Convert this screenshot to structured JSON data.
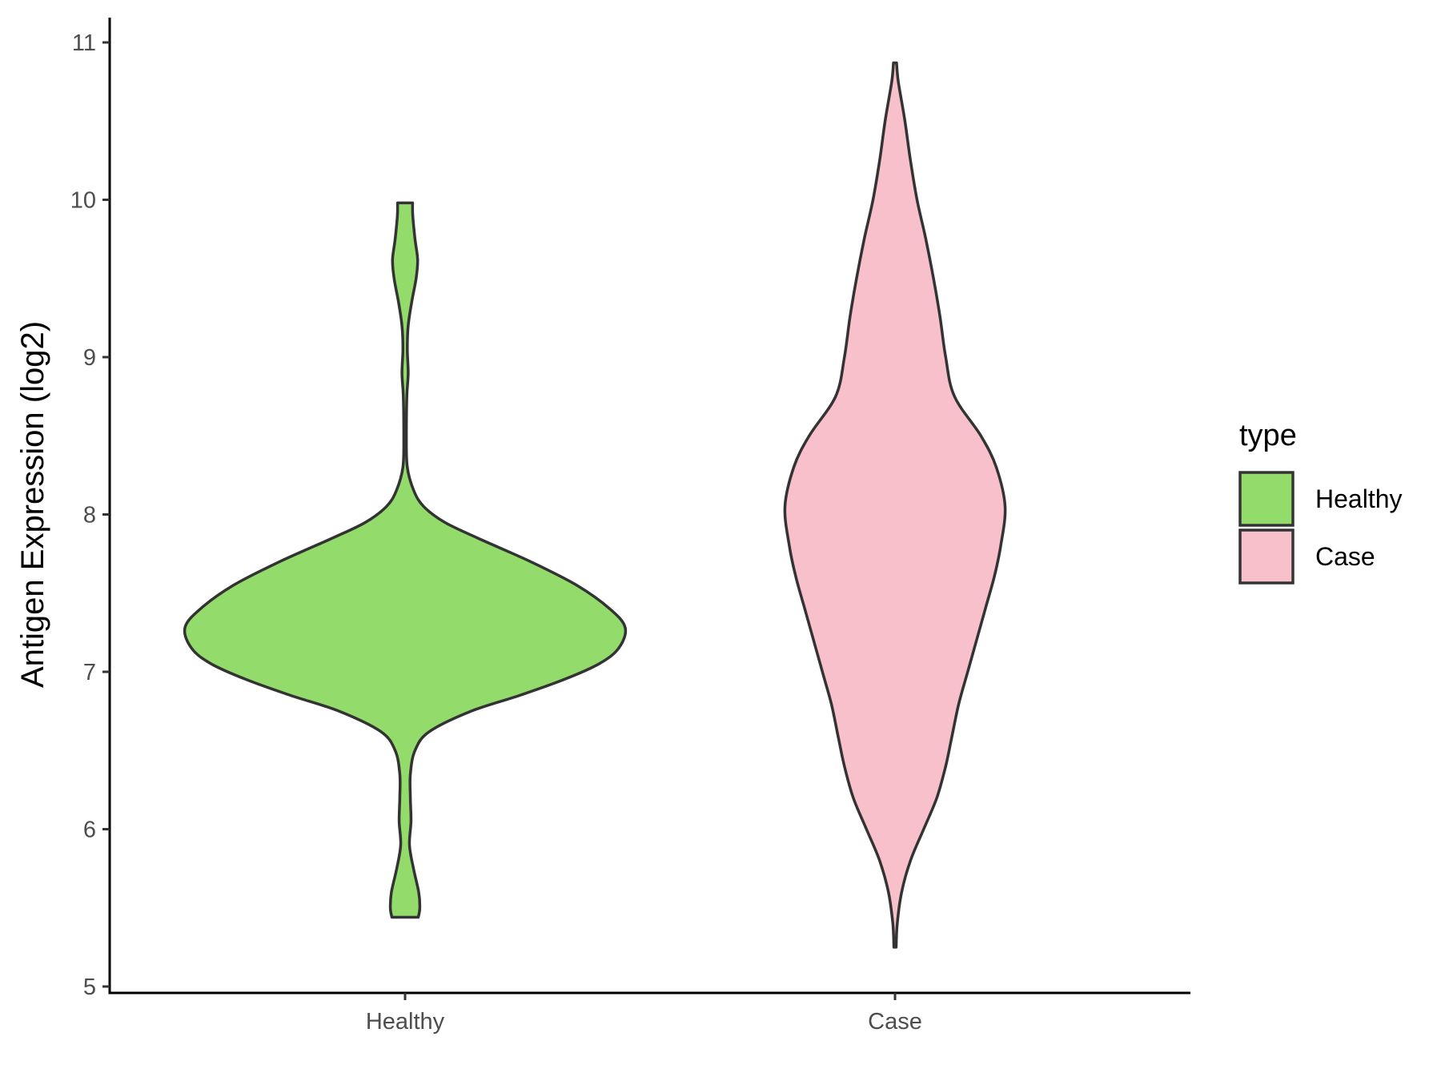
{
  "chart_data": {
    "type": "violin",
    "title": "",
    "xlabel": "",
    "ylabel": "Antigen Expression (log2)",
    "ylim": [
      4.95,
      11.15
    ],
    "yticks": [
      5,
      6,
      7,
      8,
      9,
      10,
      11
    ],
    "grid": false,
    "categories": [
      "Healthy",
      "Case"
    ],
    "legend": {
      "title": "type",
      "position": "right",
      "entries": [
        {
          "label": "Healthy",
          "color": "#93dc6b"
        },
        {
          "label": "Case",
          "color": "#f8c0cb"
        }
      ]
    },
    "series": [
      {
        "name": "Healthy",
        "color": "#93dc6b",
        "range": [
          5.44,
          9.98
        ],
        "density": [
          [
            5.44,
            0.06
          ],
          [
            5.5,
            0.067
          ],
          [
            5.6,
            0.062
          ],
          [
            5.75,
            0.038
          ],
          [
            5.9,
            0.02
          ],
          [
            6.05,
            0.027
          ],
          [
            6.2,
            0.024
          ],
          [
            6.35,
            0.024
          ],
          [
            6.5,
            0.045
          ],
          [
            6.62,
            0.11
          ],
          [
            6.75,
            0.3
          ],
          [
            6.85,
            0.52
          ],
          [
            6.95,
            0.72
          ],
          [
            7.05,
            0.88
          ],
          [
            7.15,
            0.97
          ],
          [
            7.28,
            1.0
          ],
          [
            7.4,
            0.93
          ],
          [
            7.55,
            0.78
          ],
          [
            7.7,
            0.57
          ],
          [
            7.85,
            0.33
          ],
          [
            7.95,
            0.18
          ],
          [
            8.05,
            0.085
          ],
          [
            8.15,
            0.04
          ],
          [
            8.3,
            0.01
          ],
          [
            8.5,
            0.006
          ],
          [
            8.75,
            0.008
          ],
          [
            8.9,
            0.014
          ],
          [
            9.05,
            0.01
          ],
          [
            9.2,
            0.014
          ],
          [
            9.35,
            0.03
          ],
          [
            9.5,
            0.05
          ],
          [
            9.62,
            0.057
          ],
          [
            9.75,
            0.045
          ],
          [
            9.9,
            0.035
          ],
          [
            9.98,
            0.034
          ]
        ]
      },
      {
        "name": "Case",
        "color": "#f8c0cb",
        "range": [
          5.25,
          10.87
        ],
        "density": [
          [
            5.25,
            0.005
          ],
          [
            5.4,
            0.01
          ],
          [
            5.6,
            0.03
          ],
          [
            5.8,
            0.07
          ],
          [
            6.0,
            0.13
          ],
          [
            6.2,
            0.19
          ],
          [
            6.4,
            0.23
          ],
          [
            6.6,
            0.26
          ],
          [
            6.8,
            0.29
          ],
          [
            7.0,
            0.33
          ],
          [
            7.2,
            0.37
          ],
          [
            7.4,
            0.41
          ],
          [
            7.6,
            0.45
          ],
          [
            7.8,
            0.48
          ],
          [
            8.05,
            0.5
          ],
          [
            8.3,
            0.46
          ],
          [
            8.5,
            0.39
          ],
          [
            8.75,
            0.27
          ],
          [
            9.0,
            0.23
          ],
          [
            9.25,
            0.205
          ],
          [
            9.5,
            0.175
          ],
          [
            9.75,
            0.14
          ],
          [
            10.0,
            0.1
          ],
          [
            10.25,
            0.07
          ],
          [
            10.5,
            0.045
          ],
          [
            10.75,
            0.015
          ],
          [
            10.87,
            0.007
          ]
        ]
      }
    ]
  }
}
